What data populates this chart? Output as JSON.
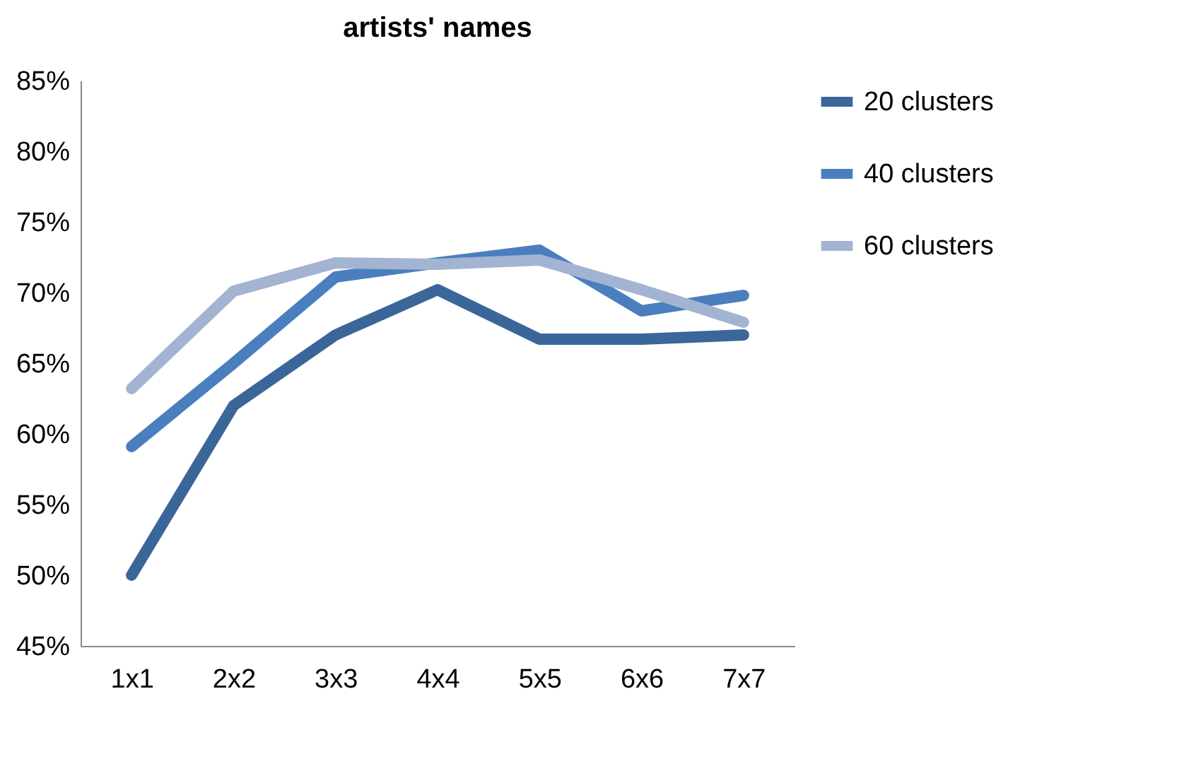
{
  "chart_data": {
    "type": "line",
    "title": "artists' names",
    "categories": [
      "1x1",
      "2x2",
      "3x3",
      "4x4",
      "5x5",
      "6x6",
      "7x7"
    ],
    "series": [
      {
        "name": "20 clusters",
        "color": "#3a6699",
        "values": [
          50,
          62,
          67,
          70.2,
          66.7,
          66.7,
          67
        ]
      },
      {
        "name": "40 clusters",
        "color": "#4a7ebf",
        "values": [
          59.1,
          65,
          71.1,
          72.1,
          73,
          68.7,
          69.8
        ]
      },
      {
        "name": "60 clusters",
        "color": "#a3b4d2",
        "values": [
          63.2,
          70.1,
          72.1,
          72,
          72.3,
          70.2,
          67.9
        ]
      }
    ],
    "ylim": [
      45,
      85
    ],
    "yticks": [
      {
        "value": 45,
        "label": "45%"
      },
      {
        "value": 50,
        "label": "50%"
      },
      {
        "value": 55,
        "label": "55%"
      },
      {
        "value": 60,
        "label": "60%"
      },
      {
        "value": 65,
        "label": "65%"
      },
      {
        "value": 70,
        "label": "70%"
      },
      {
        "value": 75,
        "label": "75%"
      },
      {
        "value": 80,
        "label": "80%"
      },
      {
        "value": 85,
        "label": "85%"
      }
    ],
    "grid": false,
    "legend": "right",
    "marker": "none",
    "line_style": "solid"
  }
}
